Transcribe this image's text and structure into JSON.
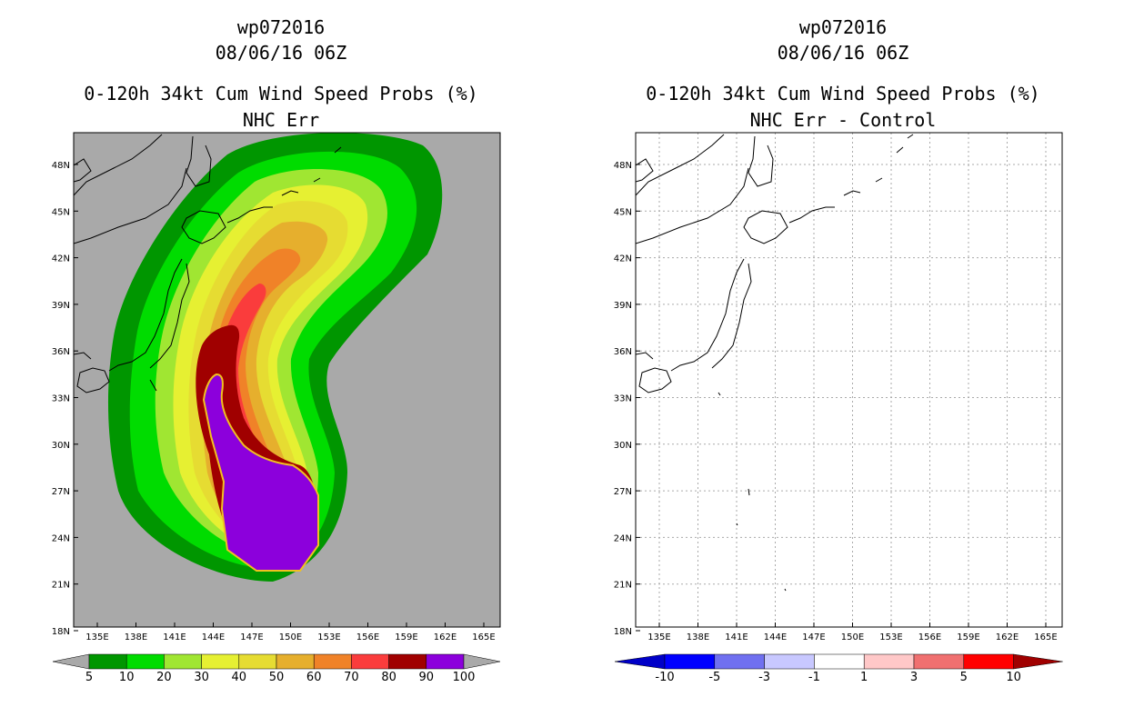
{
  "left_panel": {
    "storm_id": "wp072016",
    "datetime": "08/06/16 06Z",
    "product": "0-120h 34kt Cum Wind Speed Probs (%)",
    "subtitle": "NHC Err",
    "colorbar": {
      "labels": [
        "5",
        "10",
        "20",
        "30",
        "40",
        "50",
        "60",
        "70",
        "80",
        "90",
        "100"
      ],
      "colors": [
        "#009600",
        "#00dc00",
        "#a0e632",
        "#e6f032",
        "#e6dc32",
        "#e6af2d",
        "#f08228",
        "#fa3c3c",
        "#a00000",
        "#8c00dc"
      ]
    }
  },
  "right_panel": {
    "storm_id": "wp072016",
    "datetime": "08/06/16 06Z",
    "product": "0-120h 34kt Cum Wind Speed Probs (%)",
    "subtitle": "NHC Err - Control",
    "colorbar": {
      "labels": [
        "-10",
        "-5",
        "-3",
        "-1",
        "1",
        "3",
        "5",
        "10"
      ],
      "colors": [
        "#0000c8",
        "#0000ff",
        "#7070f0",
        "#c8c8ff",
        "#ffffff",
        "#ffc8c8",
        "#f07070",
        "#ff0000",
        "#a00000"
      ]
    }
  },
  "axes": {
    "lon_labels": [
      "135E",
      "138E",
      "141E",
      "144E",
      "147E",
      "150E",
      "153E",
      "156E",
      "159E",
      "162E",
      "165E"
    ],
    "lat_labels": [
      "48N",
      "45N",
      "42N",
      "39N",
      "36N",
      "33N",
      "30N",
      "27N",
      "24N",
      "21N",
      "18N"
    ]
  },
  "colors": {
    "land_bg": "#a9a9a9",
    "grid": "#aaaaaa"
  }
}
